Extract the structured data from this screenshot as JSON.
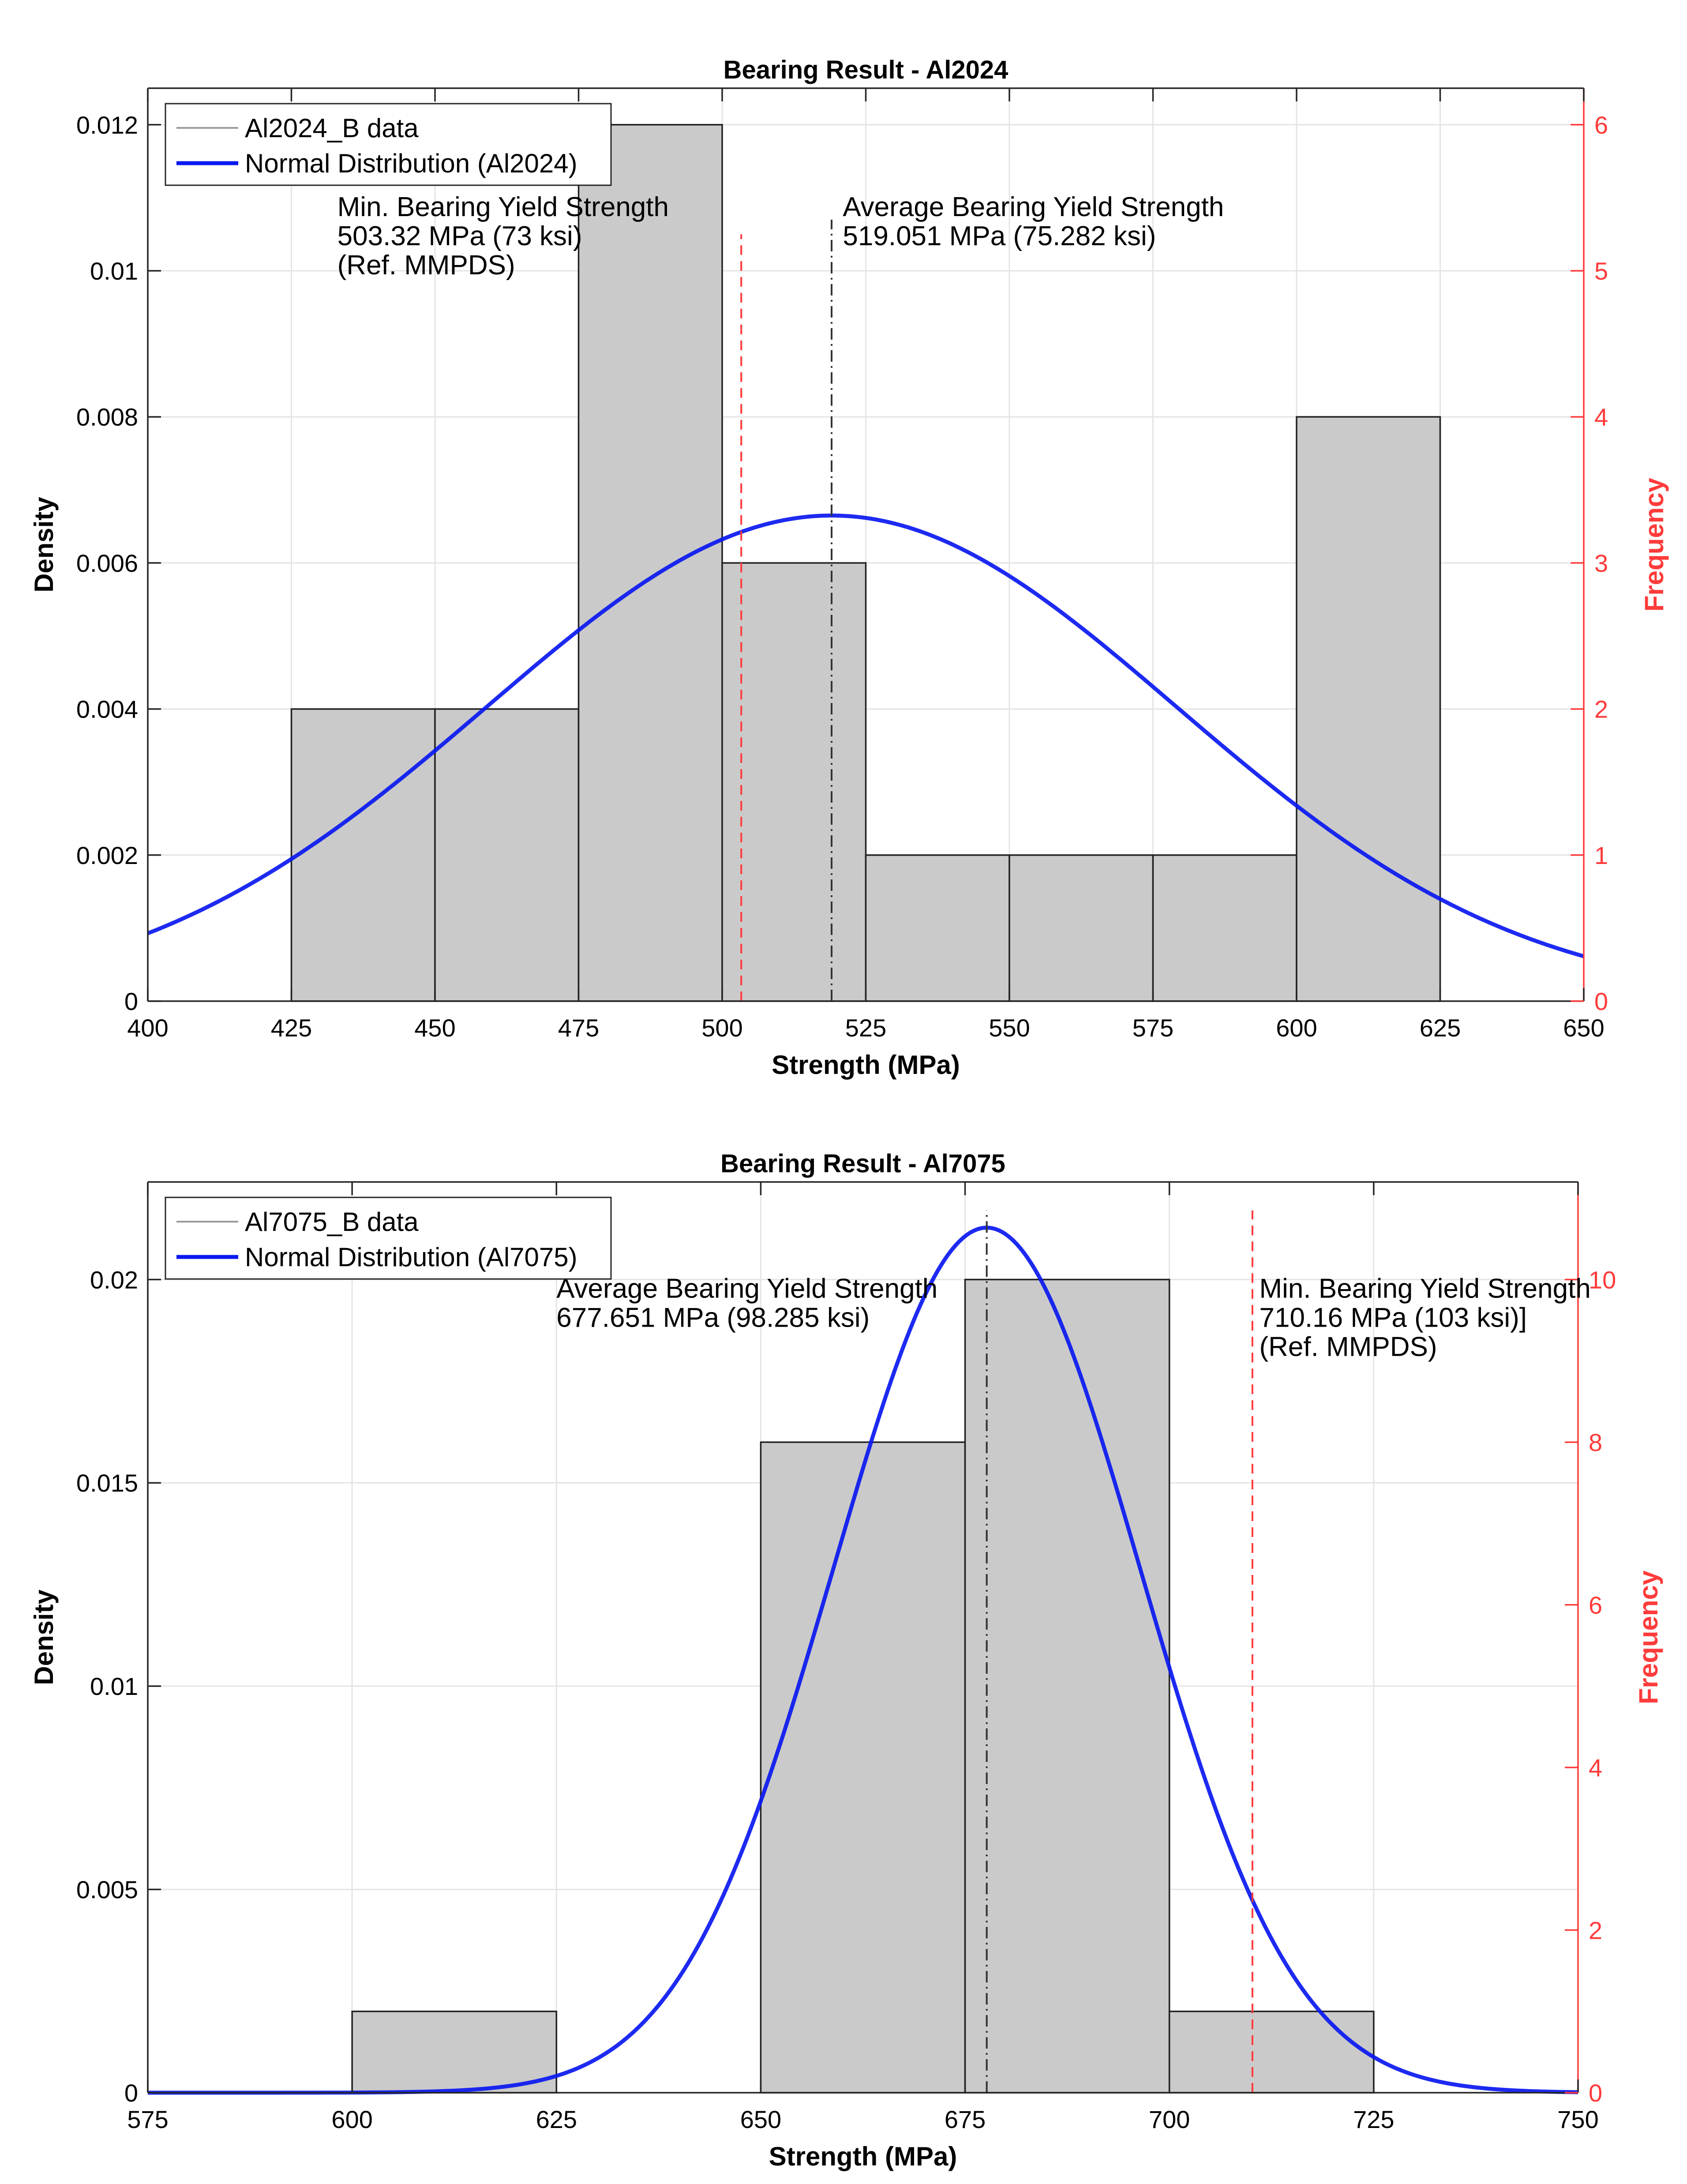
{
  "chart_data": [
    {
      "type": "histogram",
      "title": "Bearing Result - Al2024",
      "xlabel": "Strength (MPa)",
      "ylabel": "Density",
      "ylabel_right": "Frequency",
      "xlim": [
        400,
        650
      ],
      "ylim": [
        0,
        0.0125
      ],
      "ylim_right": [
        0,
        6.25
      ],
      "xticks": [
        "400",
        "425",
        "450",
        "475",
        "500",
        "525",
        "550",
        "575",
        "600",
        "625",
        "650"
      ],
      "yticks": [
        "0",
        "0.002",
        "0.004",
        "0.006",
        "0.008",
        "0.01",
        "0.012"
      ],
      "yticks_right": [
        "0",
        "1",
        "2",
        "3",
        "4",
        "5",
        "6"
      ],
      "grid": true,
      "bins": [
        {
          "x0": 425,
          "x1": 450,
          "density": 0.004,
          "count": 2
        },
        {
          "x0": 450,
          "x1": 475,
          "density": 0.004,
          "count": 2
        },
        {
          "x0": 475,
          "x1": 500,
          "density": 0.012,
          "count": 6
        },
        {
          "x0": 500,
          "x1": 525,
          "density": 0.006,
          "count": 3
        },
        {
          "x0": 525,
          "x1": 550,
          "density": 0.002,
          "count": 1
        },
        {
          "x0": 550,
          "x1": 575,
          "density": 0.002,
          "count": 1
        },
        {
          "x0": 575,
          "x1": 600,
          "density": 0.002,
          "count": 1
        },
        {
          "x0": 600,
          "x1": 625,
          "density": 0.008,
          "count": 4
        }
      ],
      "normal": {
        "mean": 519.05,
        "std": 60
      },
      "vlines": [
        {
          "x": 503.32,
          "style": "red-dash",
          "height": 0.0105
        },
        {
          "x": 519.05,
          "style": "black-dashdot",
          "height": 0.0107
        }
      ],
      "legend": {
        "position": "top-left",
        "entries": [
          {
            "label": "Al2024_B data",
            "kind": "bar"
          },
          {
            "label": "Normal Distribution (Al2024)",
            "kind": "line"
          }
        ]
      },
      "annotations": [
        {
          "x": 433,
          "y": 0.01075,
          "lines": [
            "Min. Bearing Yield Strength",
            "503.32 MPa (73 ksi)",
            "(Ref. MMPDS)"
          ]
        },
        {
          "x": 521,
          "y": 0.01075,
          "lines": [
            "Average Bearing Yield Strength",
            "519.051 MPa (75.282 ksi)"
          ]
        }
      ]
    },
    {
      "type": "histogram",
      "title": "Bearing Result - Al7075",
      "xlabel": "Strength (MPa)",
      "ylabel": "Density",
      "ylabel_right": "Frequency",
      "xlim": [
        575,
        750
      ],
      "ylim": [
        0,
        0.0224
      ],
      "ylim_right": [
        0,
        11.2
      ],
      "xticks": [
        "575",
        "600",
        "625",
        "650",
        "675",
        "700",
        "725",
        "750"
      ],
      "yticks": [
        "0",
        "0.005",
        "0.01",
        "0.015",
        "0.02"
      ],
      "yticks_right": [
        "0",
        "2",
        "4",
        "6",
        "8",
        "10"
      ],
      "grid": true,
      "bins": [
        {
          "x0": 600,
          "x1": 625,
          "density": 0.002,
          "count": 1
        },
        {
          "x0": 650,
          "x1": 675,
          "density": 0.016,
          "count": 8
        },
        {
          "x0": 675,
          "x1": 700,
          "density": 0.02,
          "count": 10
        },
        {
          "x0": 700,
          "x1": 725,
          "density": 0.002,
          "count": 1
        }
      ],
      "normal": {
        "mean": 677.65,
        "std": 18.75
      },
      "vlines": [
        {
          "x": 677.651,
          "style": "black-dashdot",
          "height": 0.0217
        },
        {
          "x": 710.16,
          "style": "red-dash",
          "height": 0.0217
        }
      ],
      "legend": {
        "position": "top-left",
        "entries": [
          {
            "label": "Al7075_B data",
            "kind": "bar"
          },
          {
            "label": "Normal Distribution (Al7075)",
            "kind": "line"
          }
        ]
      },
      "annotations": [
        {
          "x": 625,
          "y": 0.01955,
          "lines": [
            "Average Bearing Yield Strength",
            "677.651  MPa (98.285 ksi)"
          ]
        },
        {
          "x": 711,
          "y": 0.01955,
          "lines": [
            "Min. Bearing Yield Strength",
            "710.16 MPa (103 ksi)]",
            "(Ref. MMPDS)"
          ]
        }
      ]
    }
  ]
}
